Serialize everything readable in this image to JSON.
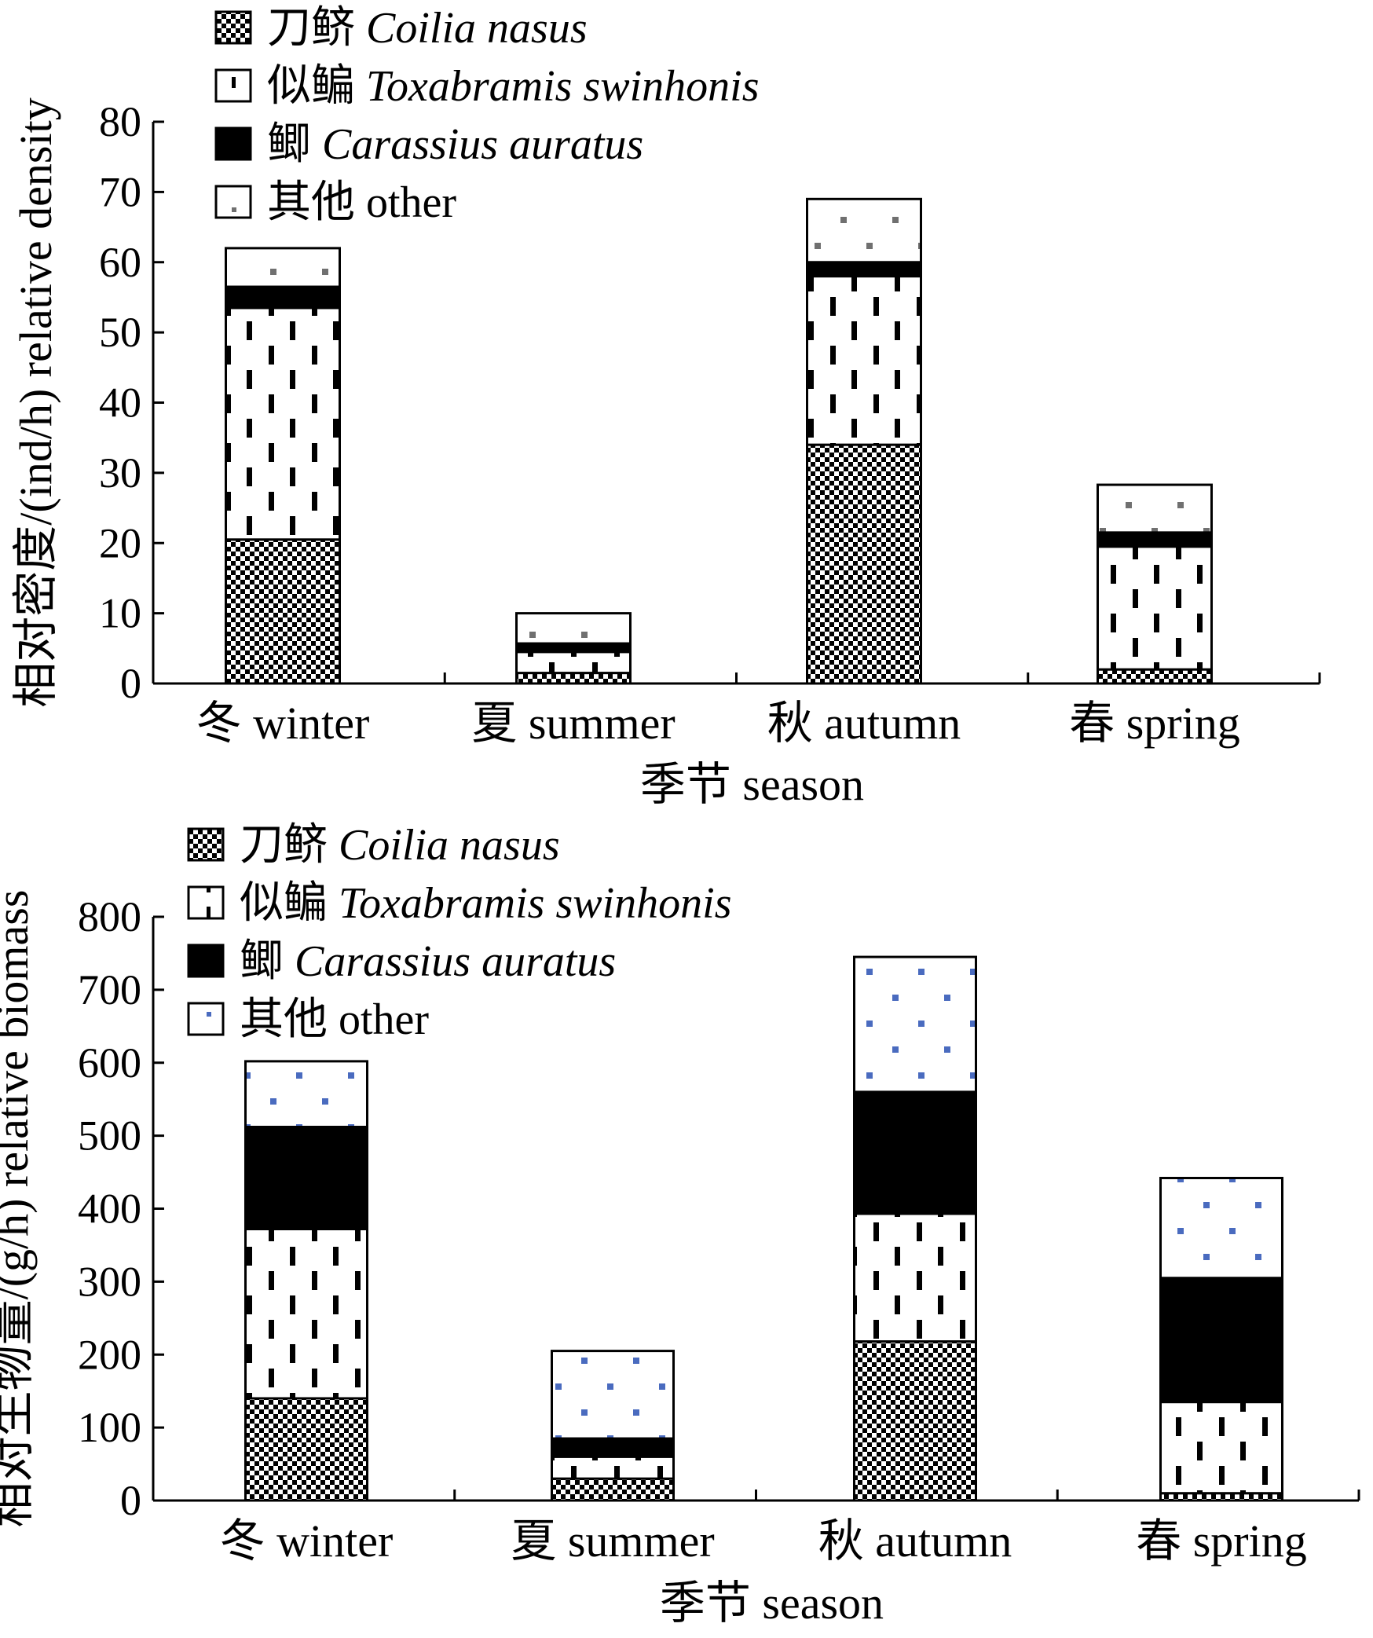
{
  "chart_data": [
    {
      "type": "bar",
      "stacked": true,
      "title": "",
      "xlabel": "季节 season",
      "ylabel": "相对密度/(ind/h) relative density",
      "categories": [
        "冬 winter",
        "夏 summer",
        "秋 autumn",
        "春 spring"
      ],
      "ylim": [
        0,
        80
      ],
      "yticks": [
        0,
        10,
        20,
        30,
        40,
        50,
        60,
        70,
        80
      ],
      "legend_position": "top-left",
      "series": [
        {
          "name_cn": "刀鲚",
          "name_latin": "Coilia nasus",
          "pattern": "checker",
          "values": [
            20.5,
            1.5,
            34,
            2
          ]
        },
        {
          "name_cn": "似鳊",
          "name_latin": "Toxabramis swinhonis",
          "pattern": "dashes",
          "values": [
            33,
            3,
            24,
            17.5
          ]
        },
        {
          "name_cn": "鲫",
          "name_latin": "Carassius auratus",
          "pattern": "solid",
          "values": [
            3,
            1.2,
            2,
            2
          ]
        },
        {
          "name_cn": "其他",
          "name_latin": "other",
          "pattern": "dots",
          "dot_color": "#707070",
          "values": [
            5.5,
            4.3,
            9,
            6.8
          ]
        }
      ]
    },
    {
      "type": "bar",
      "stacked": true,
      "title": "",
      "xlabel": "季节 season",
      "ylabel": "相对生物量/(g/h) relative biomass",
      "categories": [
        "冬 winter",
        "夏 summer",
        "秋 autumn",
        "春 spring"
      ],
      "ylim": [
        0,
        800
      ],
      "yticks": [
        0,
        100,
        200,
        300,
        400,
        500,
        600,
        700,
        800
      ],
      "legend_position": "top-left",
      "series": [
        {
          "name_cn": "刀鲚",
          "name_latin": "Coilia nasus",
          "pattern": "checker",
          "values": [
            140,
            30,
            218,
            10
          ]
        },
        {
          "name_cn": "似鳊",
          "name_latin": "Toxabramis swinhonis",
          "pattern": "dashes",
          "values": [
            232,
            30,
            175,
            125
          ]
        },
        {
          "name_cn": "鲫",
          "name_latin": "Carassius auratus",
          "pattern": "solid",
          "values": [
            140,
            25,
            167,
            170
          ]
        },
        {
          "name_cn": "其他",
          "name_latin": "other",
          "pattern": "dots",
          "dot_color": "#4a6bbf",
          "values": [
            90,
            120,
            185,
            137
          ]
        }
      ]
    }
  ]
}
